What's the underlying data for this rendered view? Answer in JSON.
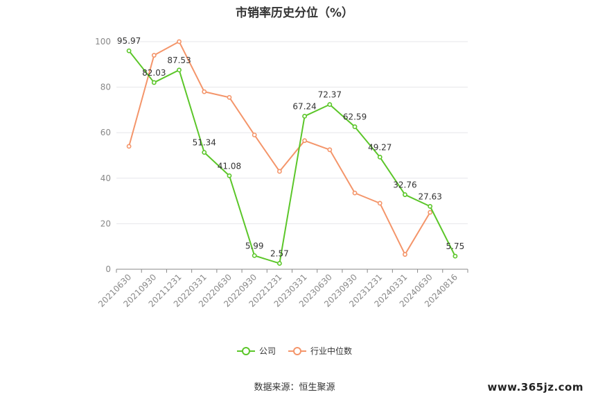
{
  "chart_data": {
    "type": "line",
    "title": "市销率历史分位（%）",
    "categories": [
      "20210630",
      "20210930",
      "20211231",
      "20220331",
      "20220630",
      "20220930",
      "20221231",
      "20230331",
      "20230630",
      "20230930",
      "20231231",
      "20240331",
      "20240630",
      "20240816"
    ],
    "series": [
      {
        "name": "公司",
        "color": "#5bc629",
        "values": [
          95.97,
          82.03,
          87.53,
          51.34,
          41.08,
          5.99,
          2.57,
          67.24,
          72.37,
          62.59,
          49.27,
          32.76,
          27.63,
          5.75
        ],
        "labels": [
          "95.97",
          "82.03",
          "87.53",
          "51.34",
          "41.08",
          "5.99",
          "2.57",
          "67.24",
          "72.37",
          "62.59",
          "49.27",
          "32.76",
          "27.63",
          "5.75"
        ]
      },
      {
        "name": "行业中位数",
        "color": "#f4956a",
        "values": [
          54,
          94,
          100,
          78,
          75.5,
          59,
          43,
          56.5,
          52.5,
          33.5,
          29,
          6.5,
          25,
          null
        ]
      }
    ],
    "yticks": [
      "0",
      "20",
      "40",
      "60",
      "80",
      "100"
    ],
    "ylim": [
      0,
      100
    ],
    "grid": true,
    "legend": "bottom-center"
  },
  "source": "数据来源：恒生聚源",
  "watermark": "www.365jz.com"
}
